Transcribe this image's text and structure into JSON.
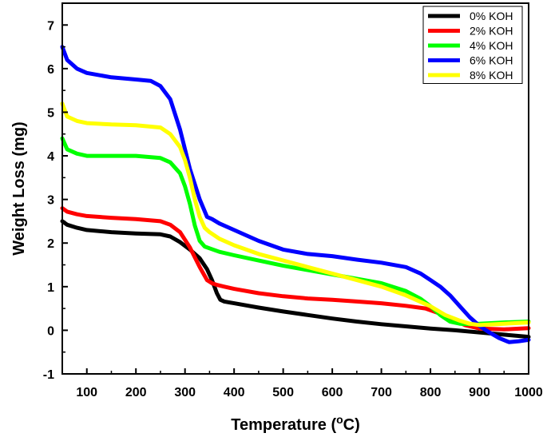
{
  "chart_data": {
    "type": "line",
    "title": "",
    "xlabel": "Temperature (",
    "xlabel_sup": "o",
    "xlabel_suffix": "C)",
    "ylabel": "Weight Loss (mg)",
    "xlim": [
      50,
      1000
    ],
    "ylim": [
      -1,
      7.5
    ],
    "x_ticks": [
      100,
      200,
      300,
      400,
      500,
      600,
      700,
      800,
      900,
      1000
    ],
    "y_ticks": [
      -1,
      0,
      1,
      2,
      3,
      4,
      5,
      6,
      7
    ],
    "grid": false,
    "legend_position": "top-right",
    "series": [
      {
        "name": "0% KOH",
        "color": "#000000",
        "x": [
          50,
          60,
          80,
          100,
          150,
          200,
          250,
          270,
          290,
          310,
          330,
          345,
          355,
          365,
          372,
          380,
          400,
          450,
          500,
          550,
          600,
          650,
          700,
          750,
          800,
          850,
          900,
          950,
          1000
        ],
        "y": [
          2.5,
          2.42,
          2.35,
          2.3,
          2.25,
          2.22,
          2.2,
          2.15,
          2.02,
          1.85,
          1.65,
          1.4,
          1.15,
          0.85,
          0.7,
          0.66,
          0.62,
          0.52,
          0.43,
          0.35,
          0.27,
          0.2,
          0.14,
          0.09,
          0.04,
          0.0,
          -0.05,
          -0.1,
          -0.15
        ]
      },
      {
        "name": "2% KOH",
        "color": "#ff0000",
        "x": [
          50,
          60,
          80,
          100,
          150,
          200,
          250,
          270,
          290,
          310,
          330,
          345,
          355,
          365,
          380,
          400,
          450,
          500,
          550,
          600,
          650,
          700,
          750,
          790,
          820,
          850,
          870,
          900,
          950,
          1000
        ],
        "y": [
          2.8,
          2.72,
          2.66,
          2.62,
          2.58,
          2.55,
          2.5,
          2.42,
          2.25,
          1.9,
          1.45,
          1.15,
          1.08,
          1.04,
          1.0,
          0.95,
          0.85,
          0.78,
          0.73,
          0.7,
          0.66,
          0.62,
          0.56,
          0.5,
          0.38,
          0.22,
          0.12,
          0.04,
          0.02,
          0.05
        ]
      },
      {
        "name": "4% KOH",
        "color": "#00ff00",
        "x": [
          50,
          60,
          80,
          100,
          150,
          200,
          250,
          270,
          290,
          300,
          310,
          320,
          330,
          340,
          350,
          370,
          400,
          450,
          500,
          550,
          600,
          650,
          700,
          750,
          780,
          800,
          820,
          840,
          860,
          880,
          900,
          950,
          1000
        ],
        "y": [
          4.4,
          4.15,
          4.05,
          4.0,
          4.0,
          4.0,
          3.95,
          3.85,
          3.6,
          3.3,
          2.9,
          2.4,
          2.05,
          1.92,
          1.88,
          1.8,
          1.72,
          1.6,
          1.48,
          1.38,
          1.28,
          1.18,
          1.08,
          0.9,
          0.72,
          0.55,
          0.35,
          0.2,
          0.15,
          0.14,
          0.15,
          0.18,
          0.2
        ]
      },
      {
        "name": "6% KOH",
        "color": "#0000ff",
        "x": [
          50,
          60,
          80,
          100,
          150,
          200,
          230,
          250,
          270,
          290,
          310,
          330,
          345,
          355,
          370,
          400,
          450,
          500,
          550,
          600,
          650,
          700,
          750,
          780,
          800,
          820,
          840,
          860,
          880,
          900,
          920,
          940,
          960,
          980,
          1000
        ],
        "y": [
          6.5,
          6.2,
          6.0,
          5.9,
          5.8,
          5.75,
          5.72,
          5.6,
          5.3,
          4.6,
          3.7,
          3.0,
          2.6,
          2.55,
          2.45,
          2.3,
          2.05,
          1.85,
          1.75,
          1.7,
          1.62,
          1.55,
          1.45,
          1.3,
          1.15,
          1.0,
          0.8,
          0.55,
          0.3,
          0.1,
          -0.05,
          -0.18,
          -0.27,
          -0.25,
          -0.22
        ]
      },
      {
        "name": "8% KOH",
        "color": "#ffff00",
        "x": [
          50,
          60,
          80,
          100,
          150,
          200,
          250,
          270,
          290,
          300,
          310,
          320,
          330,
          340,
          350,
          370,
          400,
          450,
          500,
          550,
          600,
          650,
          700,
          750,
          800,
          830,
          860,
          880,
          900,
          950,
          1000
        ],
        "y": [
          5.2,
          4.9,
          4.8,
          4.75,
          4.72,
          4.7,
          4.65,
          4.5,
          4.2,
          3.9,
          3.5,
          3.0,
          2.6,
          2.35,
          2.25,
          2.1,
          1.95,
          1.75,
          1.6,
          1.45,
          1.3,
          1.15,
          1.0,
          0.8,
          0.55,
          0.35,
          0.22,
          0.15,
          0.12,
          0.15,
          0.18
        ]
      }
    ]
  }
}
